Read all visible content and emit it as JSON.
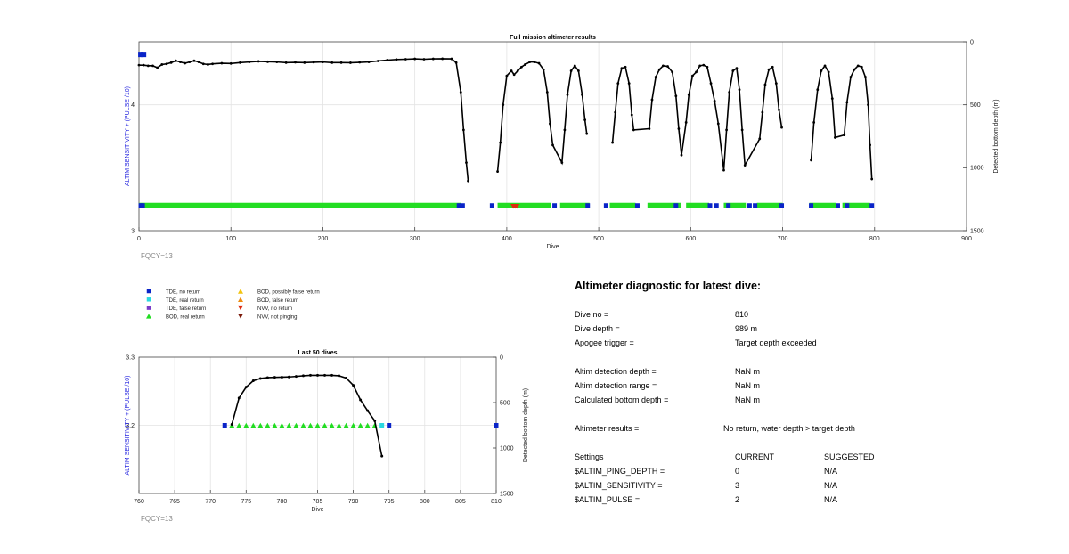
{
  "chart_data": [
    {
      "type": "scatter",
      "title": "Full mission altimeter results",
      "xlabel": "Dive",
      "ylabel_left": "ALTIM SENSITIVITY + (PULSE /10)",
      "ylabel_right": "Detected bottom depth (m)",
      "xlim": [
        0,
        900
      ],
      "ylim_left": [
        3,
        4.5
      ],
      "ylim_right_reversed": [
        0,
        1500
      ],
      "x_ticks": [
        "0",
        "100",
        "200",
        "300",
        "400",
        "500",
        "600",
        "700",
        "800",
        "900"
      ],
      "y_left_ticks": [
        "3",
        "4"
      ],
      "y_right_ticks": [
        "0",
        "500",
        "1000",
        "1500"
      ],
      "grid": true,
      "annotation": "FQCY=13",
      "bottom_depth_series": [
        {
          "x": 0,
          "y": 185
        },
        {
          "x": 5,
          "y": 185
        },
        {
          "x": 10,
          "y": 190
        },
        {
          "x": 15,
          "y": 190
        },
        {
          "x": 20,
          "y": 205
        },
        {
          "x": 25,
          "y": 180
        },
        {
          "x": 30,
          "y": 175
        },
        {
          "x": 35,
          "y": 165
        },
        {
          "x": 40,
          "y": 150
        },
        {
          "x": 45,
          "y": 160
        },
        {
          "x": 50,
          "y": 170
        },
        {
          "x": 55,
          "y": 160
        },
        {
          "x": 60,
          "y": 150
        },
        {
          "x": 65,
          "y": 160
        },
        {
          "x": 70,
          "y": 175
        },
        {
          "x": 75,
          "y": 180
        },
        {
          "x": 80,
          "y": 175
        },
        {
          "x": 90,
          "y": 170
        },
        {
          "x": 100,
          "y": 172
        },
        {
          "x": 110,
          "y": 165
        },
        {
          "x": 120,
          "y": 160
        },
        {
          "x": 130,
          "y": 155
        },
        {
          "x": 140,
          "y": 158
        },
        {
          "x": 150,
          "y": 160
        },
        {
          "x": 160,
          "y": 165
        },
        {
          "x": 170,
          "y": 163
        },
        {
          "x": 180,
          "y": 165
        },
        {
          "x": 190,
          "y": 162
        },
        {
          "x": 200,
          "y": 160
        },
        {
          "x": 210,
          "y": 165
        },
        {
          "x": 220,
          "y": 165
        },
        {
          "x": 230,
          "y": 166
        },
        {
          "x": 240,
          "y": 163
        },
        {
          "x": 250,
          "y": 160
        },
        {
          "x": 260,
          "y": 152
        },
        {
          "x": 270,
          "y": 145
        },
        {
          "x": 280,
          "y": 140
        },
        {
          "x": 290,
          "y": 138
        },
        {
          "x": 300,
          "y": 135
        },
        {
          "x": 310,
          "y": 138
        },
        {
          "x": 320,
          "y": 135
        },
        {
          "x": 330,
          "y": 134
        },
        {
          "x": 340,
          "y": 135
        },
        {
          "x": 345,
          "y": 165
        },
        {
          "x": 350,
          "y": 400
        },
        {
          "x": 353,
          "y": 700
        },
        {
          "x": 356,
          "y": 960
        },
        {
          "x": 358,
          "y": 1105
        },
        {
          "x": 390,
          "y": 1030
        },
        {
          "x": 393,
          "y": 800
        },
        {
          "x": 396,
          "y": 500
        },
        {
          "x": 400,
          "y": 270
        },
        {
          "x": 405,
          "y": 230
        },
        {
          "x": 408,
          "y": 260
        },
        {
          "x": 412,
          "y": 230
        },
        {
          "x": 416,
          "y": 200
        },
        {
          "x": 420,
          "y": 180
        },
        {
          "x": 425,
          "y": 160
        },
        {
          "x": 430,
          "y": 160
        },
        {
          "x": 435,
          "y": 170
        },
        {
          "x": 440,
          "y": 220
        },
        {
          "x": 444,
          "y": 400
        },
        {
          "x": 447,
          "y": 650
        },
        {
          "x": 450,
          "y": 820
        },
        {
          "x": 460,
          "y": 960
        },
        {
          "x": 463,
          "y": 700
        },
        {
          "x": 466,
          "y": 420
        },
        {
          "x": 470,
          "y": 230
        },
        {
          "x": 474,
          "y": 190
        },
        {
          "x": 478,
          "y": 230
        },
        {
          "x": 482,
          "y": 420
        },
        {
          "x": 485,
          "y": 620
        },
        {
          "x": 487,
          "y": 730
        },
        {
          "x": 515,
          "y": 800
        },
        {
          "x": 518,
          "y": 560
        },
        {
          "x": 521,
          "y": 330
        },
        {
          "x": 525,
          "y": 210
        },
        {
          "x": 529,
          "y": 200
        },
        {
          "x": 533,
          "y": 330
        },
        {
          "x": 536,
          "y": 580
        },
        {
          "x": 538,
          "y": 700
        },
        {
          "x": 555,
          "y": 690
        },
        {
          "x": 558,
          "y": 460
        },
        {
          "x": 562,
          "y": 280
        },
        {
          "x": 566,
          "y": 220
        },
        {
          "x": 570,
          "y": 190
        },
        {
          "x": 575,
          "y": 195
        },
        {
          "x": 580,
          "y": 240
        },
        {
          "x": 584,
          "y": 430
        },
        {
          "x": 587,
          "y": 690
        },
        {
          "x": 590,
          "y": 900
        },
        {
          "x": 595,
          "y": 640
        },
        {
          "x": 598,
          "y": 420
        },
        {
          "x": 602,
          "y": 270
        },
        {
          "x": 606,
          "y": 240
        },
        {
          "x": 610,
          "y": 190
        },
        {
          "x": 614,
          "y": 185
        },
        {
          "x": 618,
          "y": 200
        },
        {
          "x": 622,
          "y": 330
        },
        {
          "x": 626,
          "y": 470
        },
        {
          "x": 630,
          "y": 650
        },
        {
          "x": 636,
          "y": 1020
        },
        {
          "x": 639,
          "y": 700
        },
        {
          "x": 642,
          "y": 400
        },
        {
          "x": 646,
          "y": 230
        },
        {
          "x": 650,
          "y": 210
        },
        {
          "x": 653,
          "y": 380
        },
        {
          "x": 656,
          "y": 700
        },
        {
          "x": 659,
          "y": 980
        },
        {
          "x": 675,
          "y": 770
        },
        {
          "x": 678,
          "y": 560
        },
        {
          "x": 681,
          "y": 340
        },
        {
          "x": 685,
          "y": 220
        },
        {
          "x": 689,
          "y": 200
        },
        {
          "x": 693,
          "y": 330
        },
        {
          "x": 696,
          "y": 540
        },
        {
          "x": 699,
          "y": 680
        },
        {
          "x": 731,
          "y": 940
        },
        {
          "x": 734,
          "y": 640
        },
        {
          "x": 738,
          "y": 380
        },
        {
          "x": 742,
          "y": 230
        },
        {
          "x": 746,
          "y": 190
        },
        {
          "x": 750,
          "y": 240
        },
        {
          "x": 754,
          "y": 450
        },
        {
          "x": 757,
          "y": 760
        },
        {
          "x": 767,
          "y": 740
        },
        {
          "x": 770,
          "y": 480
        },
        {
          "x": 774,
          "y": 280
        },
        {
          "x": 778,
          "y": 220
        },
        {
          "x": 782,
          "y": 190
        },
        {
          "x": 786,
          "y": 200
        },
        {
          "x": 790,
          "y": 280
        },
        {
          "x": 793,
          "y": 500
        },
        {
          "x": 795,
          "y": 820
        },
        {
          "x": 797,
          "y": 1090
        }
      ],
      "real_return_segments": [
        [
          0,
          350
        ],
        [
          390,
          448
        ],
        [
          458,
          490
        ],
        [
          512,
          540
        ],
        [
          553,
          590
        ],
        [
          595,
          620
        ],
        [
          636,
          660
        ],
        [
          672,
          700
        ],
        [
          729,
          758
        ],
        [
          765,
          795
        ]
      ],
      "no_return_markers": [
        2,
        4,
        348,
        352,
        384,
        452,
        488,
        508,
        542,
        584,
        621,
        628,
        641,
        664,
        670,
        699,
        731,
        760,
        770,
        797
      ],
      "nvv_no_return_markers": [
        407,
        409,
        411
      ],
      "no_return_level": 4.4,
      "return_level": 3.2
    },
    {
      "type": "scatter",
      "title": "Last 50 dives",
      "xlabel": "Dive",
      "ylabel_left": "ALTIM SENSITIVITY + (PULSE /10)",
      "ylabel_right": "Detected bottom depth (m)",
      "xlim": [
        760,
        810
      ],
      "ylim_left": [
        3.1,
        3.3
      ],
      "ylim_right_reversed": [
        0,
        1500
      ],
      "x_ticks": [
        "760",
        "765",
        "770",
        "775",
        "780",
        "785",
        "790",
        "795",
        "800",
        "805",
        "810"
      ],
      "y_left_ticks": [
        "3.2",
        "3.3"
      ],
      "y_right_ticks": [
        "0",
        "500",
        "1000",
        "1500"
      ],
      "grid": true,
      "annotation": "FQCY=13",
      "bottom_depth_series": [
        {
          "x": 773,
          "y": 740
        },
        {
          "x": 774,
          "y": 450
        },
        {
          "x": 775,
          "y": 330
        },
        {
          "x": 776,
          "y": 260
        },
        {
          "x": 777,
          "y": 235
        },
        {
          "x": 778,
          "y": 225
        },
        {
          "x": 779,
          "y": 222
        },
        {
          "x": 780,
          "y": 220
        },
        {
          "x": 781,
          "y": 218
        },
        {
          "x": 782,
          "y": 212
        },
        {
          "x": 783,
          "y": 205
        },
        {
          "x": 784,
          "y": 200
        },
        {
          "x": 785,
          "y": 200
        },
        {
          "x": 786,
          "y": 200
        },
        {
          "x": 787,
          "y": 200
        },
        {
          "x": 788,
          "y": 205
        },
        {
          "x": 789,
          "y": 230
        },
        {
          "x": 790,
          "y": 310
        },
        {
          "x": 791,
          "y": 470
        },
        {
          "x": 792,
          "y": 590
        },
        {
          "x": 793,
          "y": 700
        },
        {
          "x": 794,
          "y": 1090
        }
      ],
      "bod_real_return_dives": [
        773,
        774,
        775,
        776,
        777,
        778,
        779,
        780,
        781,
        782,
        783,
        784,
        785,
        786,
        787,
        788,
        789,
        790,
        791,
        792,
        793
      ],
      "tde_no_return_dives": [
        772,
        795,
        810
      ],
      "tde_real_return_dives": [
        794
      ],
      "marker_level": 3.2
    }
  ],
  "legend": {
    "items": [
      {
        "label": "TDE, no return",
        "color": "#0a24c8",
        "shape": "square"
      },
      {
        "label": "TDE, real return",
        "color": "#2ad8e0",
        "shape": "square"
      },
      {
        "label": "TDE, false return",
        "color": "#7a3cc8",
        "shape": "square"
      },
      {
        "label": "BOD, real return",
        "color": "#22dd22",
        "shape": "triangle-up"
      },
      {
        "label": "BOD, possibly false return",
        "color": "#f2c40e",
        "shape": "triangle-up"
      },
      {
        "label": "BOD, false return",
        "color": "#ee8c10",
        "shape": "triangle-up"
      },
      {
        "label": "NVV, no return",
        "color": "#dd2a0e",
        "shape": "triangle-down"
      },
      {
        "label": "NVV, not pinging",
        "color": "#7a1808",
        "shape": "triangle-down"
      }
    ]
  },
  "diagnostic": {
    "title": "Altimeter diagnostic for latest dive:",
    "rows": [
      {
        "label": "Dive no =",
        "value": "810",
        "extra": ""
      },
      {
        "label": "Dive depth =",
        "value": "989 m",
        "extra": ""
      },
      {
        "label": "Apogee trigger =",
        "value": "Target depth exceeded",
        "extra": ""
      },
      {
        "label": "Altim detection depth =",
        "value": "NaN m",
        "extra": ""
      },
      {
        "label": "Altim detection range =",
        "value": "NaN m",
        "extra": ""
      },
      {
        "label": "Calculated bottom depth =",
        "value": "NaN m",
        "extra": ""
      },
      {
        "label": "Altimeter results =",
        "value": "No return, water depth > target depth",
        "extra": ""
      },
      {
        "label": "Settings",
        "value": "CURRENT",
        "extra": "SUGGESTED"
      },
      {
        "label": "$ALTIM_PING_DEPTH =",
        "value": "0",
        "extra": "N/A"
      },
      {
        "label": "$ALTIM_SENSITIVITY =",
        "value": "3",
        "extra": "N/A"
      },
      {
        "label": "$ALTIM_PULSE =",
        "value": "2",
        "extra": "N/A"
      }
    ]
  },
  "colors": {
    "no_return": "#0a24c8",
    "real_return_tde": "#2ad8e0",
    "real_return_bod": "#22dd22",
    "nvv_no_return": "#dd2a0e",
    "depth_line": "#000000",
    "left_axis_label": "#2a2ae0",
    "annotation": "#888888"
  }
}
